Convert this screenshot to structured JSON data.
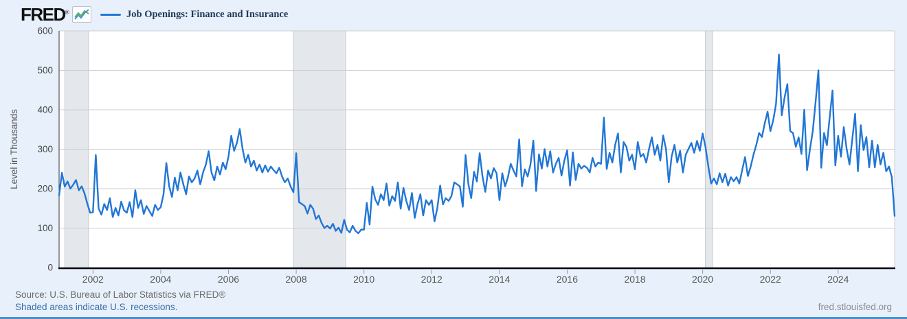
{
  "header": {
    "logo_text": "FRED",
    "logo_reg": "®",
    "legend_label": "Job Openings: Finance and Insurance"
  },
  "footer": {
    "source_line": "Source: U.S. Bureau of Labor Statistics via FRED®",
    "recession_note": "Shaded areas indicate U.S. recessions.",
    "watermark": "fred.stlouisfed.org"
  },
  "colors": {
    "background": "#e8f1fb",
    "plot_background": "#ffffff",
    "line": "#2176d5",
    "recession_band": "#e4e7eb",
    "recession_band_edge": "#c6cbd1",
    "gridline": "#cccccc",
    "axis_bottom": "#000000",
    "axis_left": "#333333",
    "tick_mark": "#999999",
    "x_tick_text": "#555555",
    "y_tick_text": "#444444",
    "y_title_text": "#555555",
    "legend_text": "#213a57",
    "source_text": "#6b6b6b",
    "link_text": "#3c6ea5",
    "watermark_text": "#8c8c8c",
    "bottom_bar": "#4f90cc",
    "logo_icon_blue": "#4a90d9",
    "logo_icon_green": "#55b55f"
  },
  "chart_data": {
    "type": "line",
    "title": "Job Openings: Finance and Insurance",
    "ylabel": "Level in Thousands",
    "xlabel": "",
    "units": "Thousands",
    "frequency": "monthly",
    "start": "2001-01",
    "end": "2025-09",
    "x_range": [
      2001.0,
      2025.667
    ],
    "ylim": [
      0,
      600
    ],
    "y_ticks": [
      0,
      100,
      200,
      300,
      400,
      500,
      600
    ],
    "x_ticks": [
      2002,
      2004,
      2006,
      2008,
      2010,
      2012,
      2014,
      2016,
      2018,
      2020,
      2022,
      2024
    ],
    "grid": true,
    "legend_position": "top-left",
    "recessions": [
      [
        2001.17,
        2001.87
      ],
      [
        2007.92,
        2009.46
      ],
      [
        2020.08,
        2020.29
      ]
    ],
    "values": [
      183,
      240,
      205,
      218,
      200,
      210,
      222,
      196,
      206,
      188,
      162,
      139,
      140,
      285,
      150,
      134,
      161,
      146,
      176,
      128,
      151,
      132,
      167,
      145,
      139,
      166,
      128,
      196,
      151,
      171,
      136,
      156,
      143,
      131,
      159,
      146,
      153,
      186,
      265,
      206,
      179,
      228,
      196,
      241,
      211,
      186,
      231,
      216,
      226,
      246,
      211,
      241,
      261,
      295,
      241,
      221,
      256,
      236,
      266,
      249,
      281,
      334,
      296,
      316,
      351,
      301,
      266,
      286,
      256,
      271,
      246,
      261,
      241,
      259,
      243,
      256,
      247,
      239,
      253,
      231,
      216,
      226,
      206,
      191,
      290,
      166,
      161,
      156,
      137,
      159,
      149,
      123,
      132,
      113,
      100,
      106,
      99,
      111,
      93,
      101,
      88,
      121,
      96,
      89,
      106,
      93,
      87,
      96,
      96,
      164,
      109,
      205,
      173,
      159,
      186,
      171,
      213,
      157,
      181,
      169,
      216,
      149,
      202,
      169,
      146,
      189,
      126,
      161,
      186,
      132,
      171,
      159,
      171,
      117,
      151,
      208,
      160,
      176,
      169,
      181,
      216,
      211,
      206,
      154,
      285,
      211,
      176,
      243,
      218,
      290,
      231,
      192,
      246,
      226,
      252,
      239,
      171,
      239,
      206,
      229,
      263,
      246,
      231,
      325,
      206,
      249,
      231,
      261,
      322,
      194,
      287,
      251,
      300,
      256,
      295,
      241,
      263,
      278,
      233,
      271,
      297,
      208,
      292,
      222,
      263,
      251,
      258,
      253,
      241,
      278,
      256,
      266,
      263,
      380,
      250,
      291,
      266,
      311,
      340,
      241,
      318,
      306,
      271,
      286,
      249,
      318,
      281,
      288,
      266,
      301,
      330,
      286,
      311,
      271,
      335,
      301,
      216,
      281,
      311,
      266,
      296,
      241,
      286,
      301,
      316,
      291,
      321,
      296,
      340,
      306,
      256,
      213,
      226,
      211,
      239,
      216,
      238,
      208,
      229,
      219,
      229,
      213,
      247,
      280,
      232,
      256,
      286,
      311,
      341,
      331,
      366,
      395,
      346,
      373,
      415,
      540,
      386,
      431,
      465,
      346,
      341,
      306,
      330,
      288,
      400,
      247,
      299,
      346,
      420,
      500,
      253,
      341,
      310,
      381,
      449,
      259,
      334,
      281,
      356,
      302,
      261,
      326,
      390,
      244,
      361,
      298,
      331,
      254,
      322,
      254,
      311,
      261,
      291,
      244,
      256,
      229,
      131
    ]
  }
}
